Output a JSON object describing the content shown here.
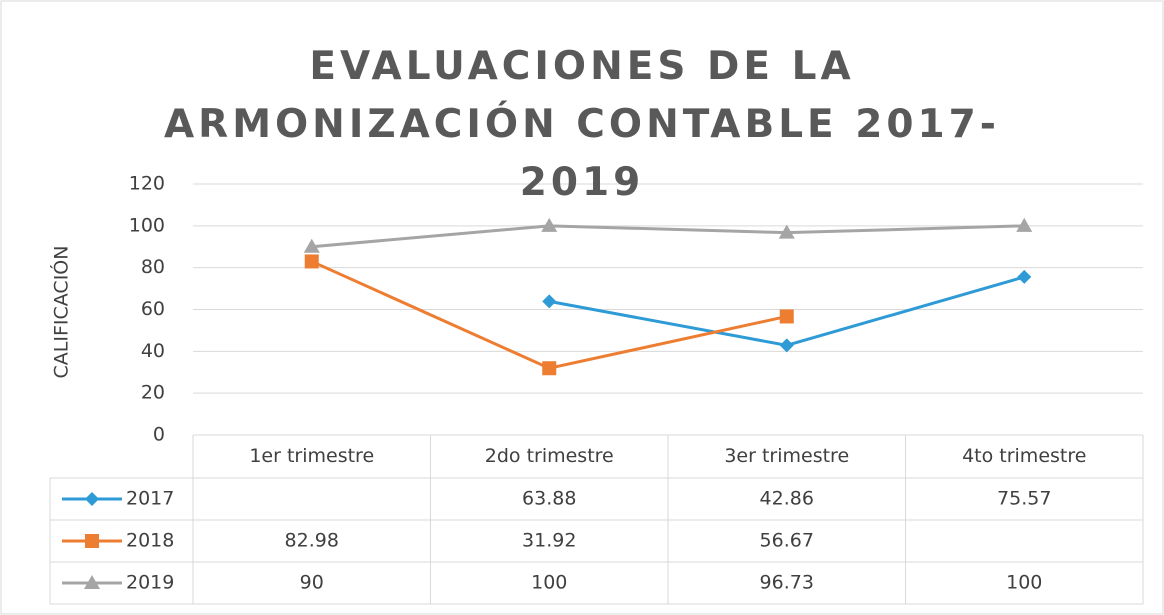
{
  "chart_data": {
    "type": "line",
    "title": "EVALUACIONES DE LA ARMONIZACIÓN CONTABLE 2017-2019",
    "ylabel": "CALIFICACIÓN",
    "categories": [
      "1er trimestre",
      "2do trimestre",
      "3er trimestre",
      "4to trimestre"
    ],
    "series": [
      {
        "name": "2017",
        "color": "#2e9bd6",
        "marker": "diamond",
        "values": [
          null,
          63.88,
          42.86,
          75.57
        ]
      },
      {
        "name": "2018",
        "color": "#ed7d31",
        "marker": "square",
        "values": [
          82.98,
          31.92,
          56.67,
          null
        ]
      },
      {
        "name": "2019",
        "color": "#a5a5a5",
        "marker": "triangle",
        "values": [
          90,
          100,
          96.73,
          100
        ]
      }
    ],
    "ylim": [
      0,
      120
    ],
    "yticks": [
      0,
      20,
      40,
      60,
      80,
      100,
      120
    ],
    "grid": true,
    "legend": "table"
  }
}
